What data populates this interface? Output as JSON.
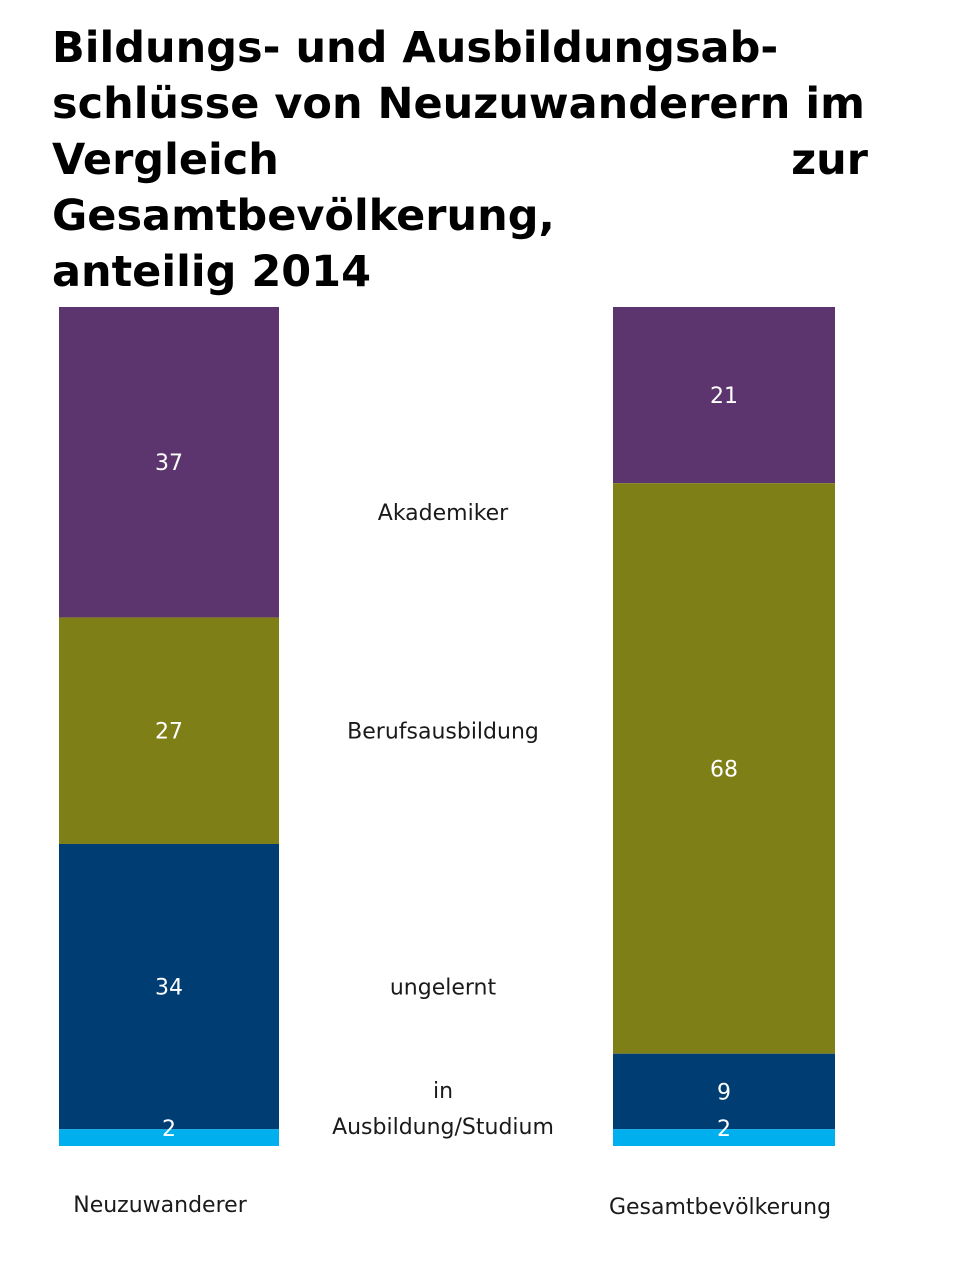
{
  "chart_data": {
    "type": "bar",
    "stacked": true,
    "title": "Bildungs- und Ausbildungsabschlüsse von Neuzuwanderern im Vergleich zur Gesamtbevölkerung, anteilig 2014",
    "title_lines": [
      "Bildungs- und Ausbildungsab-",
      "schlüsse von Neuzuwanderern im",
      "Vergleich zur Gesamtbevölkerung,",
      "anteilig 2014"
    ],
    "categories": [
      "Neuzuwanderer",
      "Gesamtbevölkerung"
    ],
    "ylim": [
      0,
      100
    ],
    "series": [
      {
        "name": "Akademiker",
        "label_lines": [
          "Akademiker"
        ],
        "color": "#5c356e",
        "values": [
          37,
          21
        ]
      },
      {
        "name": "Berufsausbildung",
        "label_lines": [
          "Berufsausbildung"
        ],
        "color": "#7f7f18",
        "values": [
          27,
          68
        ]
      },
      {
        "name": "ungelernt",
        "label_lines": [
          "ungelernt"
        ],
        "color": "#003d73",
        "values": [
          34,
          9
        ]
      },
      {
        "name": "in Ausbildung/Studium",
        "label_lines": [
          "in",
          "Ausbildung/Studium"
        ],
        "color": "#00b0ee",
        "values": [
          2,
          2
        ]
      }
    ],
    "value_labels": [
      [
        "37",
        "21"
      ],
      [
        "27",
        "68"
      ],
      [
        "34",
        "9"
      ],
      [
        "2",
        "2"
      ]
    ],
    "xlabel": "",
    "ylabel": ""
  }
}
